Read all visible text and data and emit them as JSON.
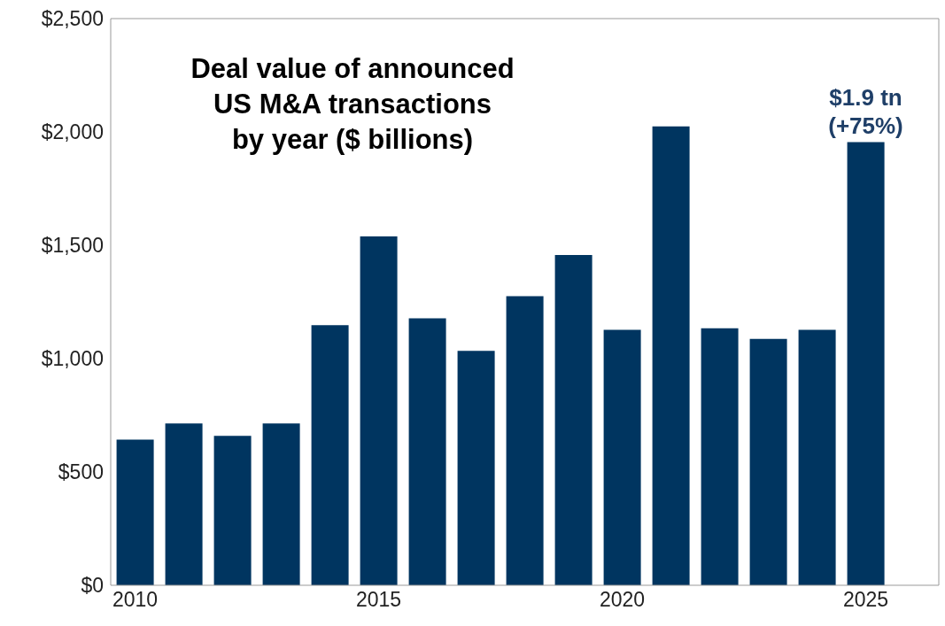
{
  "chart_data": {
    "type": "bar",
    "title": "Deal value of announced\nUS M&A transactions\nby year ($ billions)",
    "categories": [
      "2010",
      null,
      null,
      null,
      null,
      "2015",
      null,
      null,
      null,
      null,
      "2020",
      null,
      null,
      null,
      null,
      "2025",
      null
    ],
    "values": [
      643,
      714,
      659,
      714,
      1147,
      1539,
      1178,
      1034,
      1275,
      1457,
      1127,
      2024,
      1134,
      1087,
      1127,
      1955,
      null
    ],
    "color": "#003560",
    "ylim": [
      0,
      2500
    ],
    "yticks": [
      {
        "value": 0,
        "label": "$0"
      },
      {
        "value": 500,
        "label": "$500"
      },
      {
        "value": 1000,
        "label": "$1,000"
      },
      {
        "value": 1500,
        "label": "$1,500"
      },
      {
        "value": 2000,
        "label": "$2,000"
      },
      {
        "value": 2500,
        "label": "$2,500"
      }
    ],
    "annotations": [
      {
        "text": "$1.9 tn\n(+75%)",
        "x": "2025",
        "y": 1955
      }
    ],
    "grid": false,
    "legend": false
  }
}
